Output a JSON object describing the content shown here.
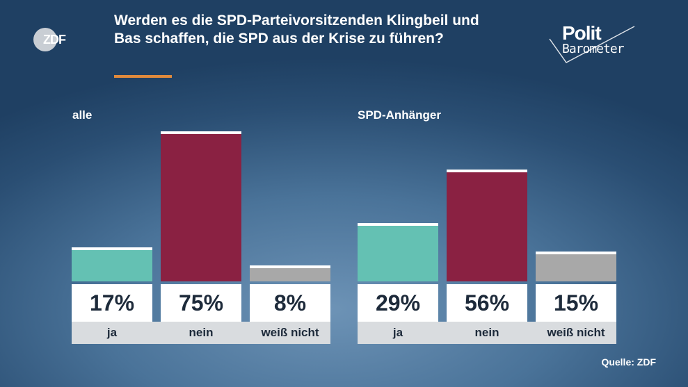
{
  "logo": {
    "zdf_text": "ZDF"
  },
  "title": "Werden es die SPD-Parteivorsitzenden Klingbeil und Bas schaffen, die SPD aus der Krise zu führen?",
  "brand": {
    "line1": "Polit",
    "line2": "Barometer"
  },
  "source": "Quelle: ZDF",
  "colors": {
    "ja": "#64c1b3",
    "nein": "#8a2142",
    "weiss_nicht": "#a8a8a8",
    "accent": "#e08a3c"
  },
  "chart_data": [
    {
      "type": "bar",
      "title": "alle",
      "categories": [
        "ja",
        "nein",
        "weiß nicht"
      ],
      "values": [
        17,
        75,
        8
      ],
      "value_labels": [
        "17%",
        "75%",
        "8%"
      ],
      "ylim": [
        0,
        100
      ]
    },
    {
      "type": "bar",
      "title": "SPD-Anhänger",
      "categories": [
        "ja",
        "nein",
        "weiß nicht"
      ],
      "values": [
        29,
        56,
        15
      ],
      "value_labels": [
        "29%",
        "56%",
        "15%"
      ],
      "ylim": [
        0,
        100
      ]
    }
  ]
}
